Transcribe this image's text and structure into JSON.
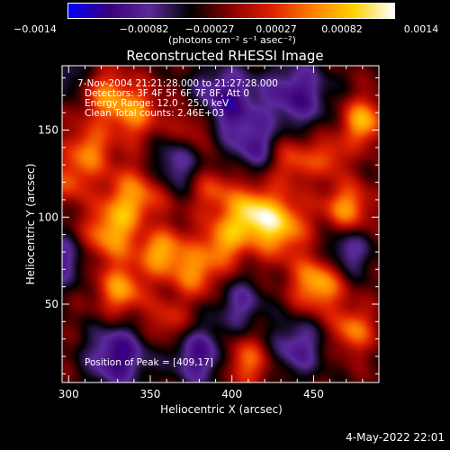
{
  "colorbar": {
    "tick_labels": [
      "−0.0014",
      "−0.00082",
      "−0.00027",
      "0.00027",
      "0.00082",
      "0.0014"
    ],
    "unit_label": "(photons cm⁻² s⁻¹ asec⁻²)",
    "range": [
      -0.0014,
      0.0014
    ],
    "colormap": [
      "#0000ff",
      "#3c007a",
      "#5a2a9a",
      "#000000",
      "#8a0000",
      "#e02000",
      "#ff8000",
      "#ffd000",
      "#ffffff"
    ]
  },
  "chart_data": {
    "type": "heatmap",
    "title": "Reconstructed RHESSI Image",
    "xlabel": "Heliocentric X (arcsec)",
    "ylabel": "Heliocentric Y (arcsec)",
    "xlim": [
      296,
      490
    ],
    "ylim": [
      5,
      187
    ],
    "xticks": [
      300,
      350,
      400,
      450
    ],
    "yticks": [
      50,
      100,
      150
    ],
    "annotations": {
      "time_range": "7-Nov-2004 21:21:28.000 to 21:27:28.000",
      "detectors": "Detectors: 3F 4F 5F 6F 7F 8F, Att 0",
      "energy_range": "Energy Range: 12.0 - 25.0 keV",
      "method_counts": "Clean     Total counts: 2.46E+03",
      "peak_position": "Position of Peak = [409,17]"
    },
    "peak": [
      409,
      17
    ],
    "bright_sources": [
      {
        "x": 428,
        "y": 95,
        "amp": 1.0,
        "s": 12
      },
      {
        "x": 410,
        "y": 103,
        "amp": 0.85,
        "s": 10
      },
      {
        "x": 395,
        "y": 86,
        "amp": 0.75,
        "s": 10
      },
      {
        "x": 453,
        "y": 62,
        "amp": 0.95,
        "s": 11
      },
      {
        "x": 340,
        "y": 110,
        "amp": 0.8,
        "s": 13
      },
      {
        "x": 325,
        "y": 90,
        "amp": 0.75,
        "s": 11
      },
      {
        "x": 357,
        "y": 80,
        "amp": 0.85,
        "s": 10
      },
      {
        "x": 378,
        "y": 68,
        "amp": 0.7,
        "s": 10
      },
      {
        "x": 332,
        "y": 58,
        "amp": 0.8,
        "s": 10
      },
      {
        "x": 312,
        "y": 138,
        "amp": 0.7,
        "s": 10
      },
      {
        "x": 340,
        "y": 160,
        "amp": 0.7,
        "s": 11
      },
      {
        "x": 322,
        "y": 170,
        "amp": 0.6,
        "s": 10
      },
      {
        "x": 378,
        "y": 153,
        "amp": 0.55,
        "s": 10
      },
      {
        "x": 480,
        "y": 155,
        "amp": 0.9,
        "s": 9
      },
      {
        "x": 470,
        "y": 105,
        "amp": 0.8,
        "s": 10
      },
      {
        "x": 474,
        "y": 35,
        "amp": 0.7,
        "s": 9
      },
      {
        "x": 437,
        "y": 133,
        "amp": 0.55,
        "s": 10
      },
      {
        "x": 409,
        "y": 17,
        "amp": 0.65,
        "s": 10
      },
      {
        "x": 460,
        "y": 135,
        "amp": 0.5,
        "s": 8
      },
      {
        "x": 388,
        "y": 115,
        "amp": 0.5,
        "s": 9
      },
      {
        "x": 300,
        "y": 120,
        "amp": 0.5,
        "s": 8
      },
      {
        "x": 360,
        "y": 40,
        "amp": 0.45,
        "s": 9
      }
    ],
    "dark_sources": [
      {
        "x": 395,
        "y": 165,
        "amp": -0.8,
        "s": 15
      },
      {
        "x": 440,
        "y": 170,
        "amp": -0.7,
        "s": 14
      },
      {
        "x": 330,
        "y": 20,
        "amp": -0.8,
        "s": 13
      },
      {
        "x": 380,
        "y": 20,
        "amp": -0.7,
        "s": 12
      },
      {
        "x": 440,
        "y": 25,
        "amp": -0.6,
        "s": 12
      },
      {
        "x": 295,
        "y": 75,
        "amp": -0.6,
        "s": 11
      },
      {
        "x": 415,
        "y": 140,
        "amp": -0.55,
        "s": 10
      },
      {
        "x": 470,
        "y": 80,
        "amp": -0.6,
        "s": 11
      },
      {
        "x": 365,
        "y": 130,
        "amp": -0.55,
        "s": 11
      },
      {
        "x": 350,
        "y": 95,
        "amp": -0.3,
        "s": 7
      },
      {
        "x": 405,
        "y": 50,
        "amp": -0.5,
        "s": 11
      },
      {
        "x": 300,
        "y": 180,
        "amp": -0.4,
        "s": 9
      }
    ]
  },
  "footer": {
    "date": "4-May-2022 22:01"
  }
}
